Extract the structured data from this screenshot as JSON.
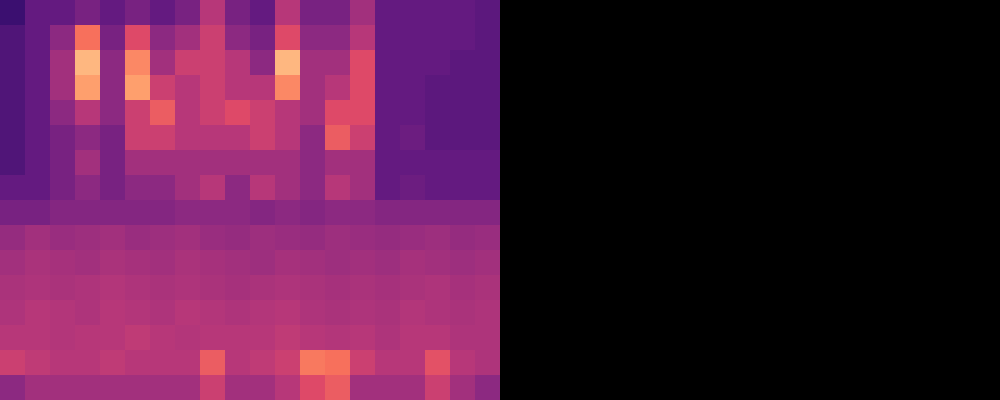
{
  "chart_data": {
    "type": "heatmap",
    "color": "magma",
    "tick_labels": false,
    "cells": [
      [
        0.2,
        0.3,
        0.3,
        0.35,
        0.3,
        0.35,
        0.3,
        0.35,
        0.5,
        0.35,
        0.3,
        0.5,
        0.35,
        0.35,
        0.45,
        0.3,
        0.3,
        0.3,
        0.3,
        0.28
      ],
      [
        0.25,
        0.3,
        0.4,
        0.7,
        0.35,
        0.6,
        0.4,
        0.45,
        0.55,
        0.4,
        0.35,
        0.6,
        0.4,
        0.4,
        0.5,
        0.3,
        0.3,
        0.3,
        0.3,
        0.28
      ],
      [
        0.25,
        0.3,
        0.45,
        0.85,
        0.4,
        0.75,
        0.45,
        0.55,
        0.55,
        0.5,
        0.4,
        0.85,
        0.45,
        0.45,
        0.6,
        0.3,
        0.3,
        0.3,
        0.28,
        0.28
      ],
      [
        0.25,
        0.3,
        0.45,
        0.8,
        0.4,
        0.8,
        0.55,
        0.5,
        0.55,
        0.5,
        0.5,
        0.75,
        0.45,
        0.5,
        0.6,
        0.3,
        0.3,
        0.28,
        0.28,
        0.28
      ],
      [
        0.25,
        0.3,
        0.4,
        0.5,
        0.4,
        0.55,
        0.65,
        0.5,
        0.55,
        0.6,
        0.55,
        0.5,
        0.45,
        0.6,
        0.6,
        0.3,
        0.3,
        0.28,
        0.28,
        0.28
      ],
      [
        0.25,
        0.3,
        0.35,
        0.4,
        0.35,
        0.55,
        0.55,
        0.5,
        0.5,
        0.5,
        0.55,
        0.5,
        0.4,
        0.65,
        0.55,
        0.3,
        0.32,
        0.28,
        0.28,
        0.28
      ],
      [
        0.25,
        0.3,
        0.35,
        0.45,
        0.35,
        0.45,
        0.45,
        0.45,
        0.45,
        0.45,
        0.45,
        0.45,
        0.4,
        0.45,
        0.45,
        0.3,
        0.3,
        0.3,
        0.3,
        0.3
      ],
      [
        0.3,
        0.3,
        0.35,
        0.4,
        0.35,
        0.4,
        0.4,
        0.45,
        0.5,
        0.4,
        0.5,
        0.45,
        0.4,
        0.5,
        0.45,
        0.3,
        0.32,
        0.3,
        0.3,
        0.3
      ],
      [
        0.35,
        0.35,
        0.38,
        0.38,
        0.38,
        0.38,
        0.38,
        0.4,
        0.4,
        0.4,
        0.38,
        0.4,
        0.38,
        0.4,
        0.4,
        0.38,
        0.38,
        0.38,
        0.38,
        0.38
      ],
      [
        0.42,
        0.45,
        0.43,
        0.44,
        0.45,
        0.43,
        0.44,
        0.45,
        0.43,
        0.42,
        0.44,
        0.43,
        0.42,
        0.44,
        0.43,
        0.42,
        0.43,
        0.44,
        0.42,
        0.43
      ],
      [
        0.45,
        0.47,
        0.46,
        0.45,
        0.47,
        0.46,
        0.45,
        0.47,
        0.46,
        0.45,
        0.44,
        0.46,
        0.45,
        0.44,
        0.45,
        0.44,
        0.46,
        0.45,
        0.44,
        0.45
      ],
      [
        0.47,
        0.48,
        0.47,
        0.48,
        0.49,
        0.48,
        0.47,
        0.48,
        0.47,
        0.46,
        0.47,
        0.48,
        0.47,
        0.46,
        0.47,
        0.46,
        0.47,
        0.48,
        0.46,
        0.47
      ],
      [
        0.48,
        0.5,
        0.49,
        0.48,
        0.5,
        0.49,
        0.48,
        0.5,
        0.49,
        0.48,
        0.49,
        0.5,
        0.48,
        0.47,
        0.48,
        0.47,
        0.49,
        0.48,
        0.47,
        0.48
      ],
      [
        0.5,
        0.5,
        0.49,
        0.5,
        0.5,
        0.52,
        0.5,
        0.49,
        0.5,
        0.5,
        0.5,
        0.52,
        0.5,
        0.49,
        0.5,
        0.48,
        0.5,
        0.5,
        0.48,
        0.48
      ],
      [
        0.55,
        0.52,
        0.5,
        0.5,
        0.52,
        0.5,
        0.5,
        0.5,
        0.65,
        0.5,
        0.52,
        0.55,
        0.72,
        0.7,
        0.55,
        0.5,
        0.5,
        0.62,
        0.5,
        0.48
      ],
      [
        0.4,
        0.45,
        0.45,
        0.45,
        0.45,
        0.45,
        0.45,
        0.45,
        0.55,
        0.45,
        0.45,
        0.5,
        0.6,
        0.65,
        0.45,
        0.45,
        0.45,
        0.55,
        0.45,
        0.4
      ]
    ]
  }
}
